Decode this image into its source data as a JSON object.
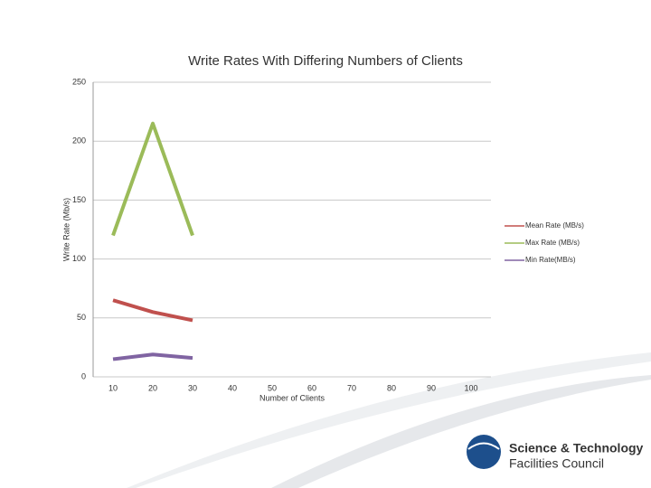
{
  "chart_data": {
    "type": "line",
    "title": "Write Rates With Differing Numbers of Clients",
    "x_label": "Number of Clients",
    "y_label": "Write Rate (Mb/s)",
    "categories": [
      "10",
      "20",
      "30",
      "40",
      "50",
      "60",
      "70",
      "80",
      "90",
      "100"
    ],
    "series": [
      {
        "name": "Mean Rate (MB/s)",
        "color": "#c0504d",
        "values": [
          65,
          55,
          48,
          null,
          null,
          null,
          null,
          null,
          null,
          null
        ]
      },
      {
        "name": "Max Rate (MB/s)",
        "color": "#9bbb59",
        "values": [
          120,
          215,
          120,
          null,
          null,
          null,
          null,
          null,
          null,
          null
        ]
      },
      {
        "name": "Min Rate(MB/s)",
        "color": "#8064a2",
        "values": [
          15,
          19,
          16,
          null,
          null,
          null,
          null,
          null,
          null,
          null
        ]
      }
    ],
    "ylim": [
      0,
      250
    ],
    "yticks": [
      0,
      50,
      100,
      150,
      200,
      250
    ],
    "grid": true,
    "legend": "right"
  },
  "logo": {
    "line1": "Science & Technology",
    "line2": "Facilities Council"
  }
}
